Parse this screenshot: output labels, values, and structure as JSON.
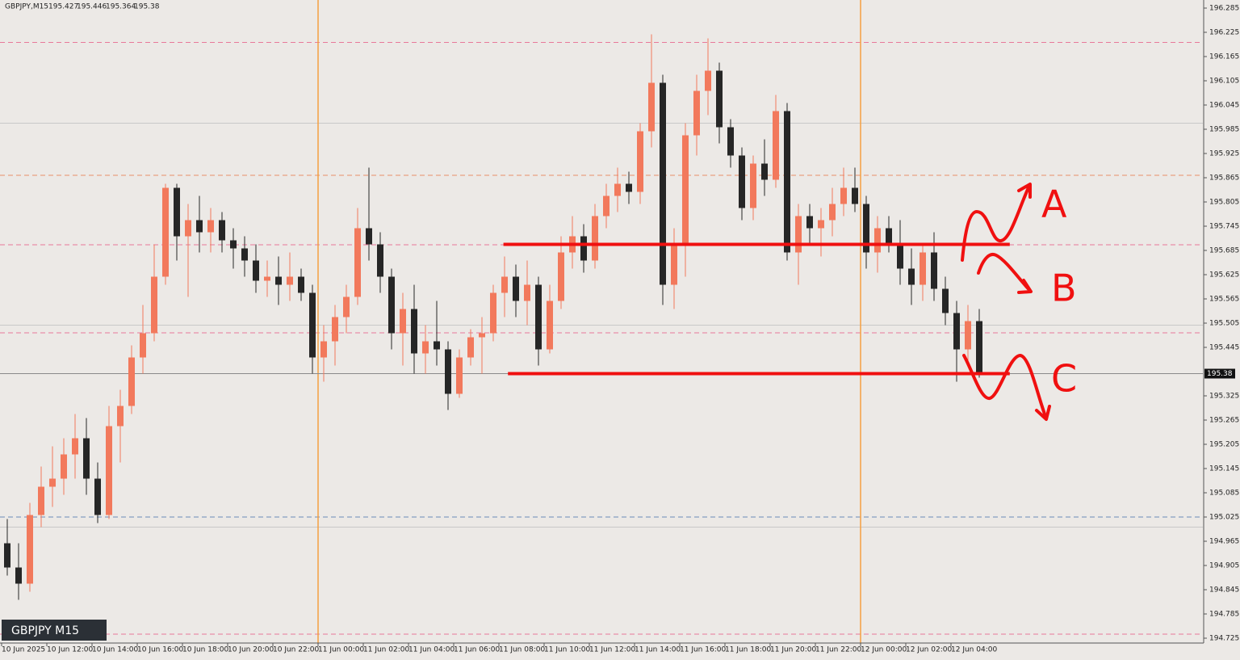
{
  "chart_data": {
    "type": "candlestick",
    "header": {
      "symbol": "GBPJPY,M15",
      "open": 195.427,
      "high": 195.446,
      "low": 195.364,
      "close": 195.38
    },
    "label": "GBPJPY M15",
    "ylim": [
      194.725,
      196.285
    ],
    "yticks": [
      196.285,
      196.225,
      196.165,
      196.105,
      196.045,
      195.985,
      195.925,
      195.865,
      195.805,
      195.745,
      195.685,
      195.625,
      195.565,
      195.505,
      195.445,
      195.325,
      195.265,
      195.205,
      195.145,
      195.085,
      195.025,
      194.965,
      194.905,
      194.845,
      194.785,
      194.725
    ],
    "xticks": [
      {
        "value": 0,
        "label": "10 Jun 2025"
      },
      {
        "value": 4,
        "label": "10 Jun 12:00"
      },
      {
        "value": 8,
        "label": "10 Jun 14:00"
      },
      {
        "value": 12,
        "label": "10 Jun 16:00"
      },
      {
        "value": 16,
        "label": "10 Jun 18:00"
      },
      {
        "value": 20,
        "label": "10 Jun 20:00"
      },
      {
        "value": 24,
        "label": "10 Jun 22:00"
      },
      {
        "value": 28,
        "label": "11 Jun 00:00"
      },
      {
        "value": 32,
        "label": "11 Jun 02:00"
      },
      {
        "value": 36,
        "label": "11 Jun 04:00"
      },
      {
        "value": 40,
        "label": "11 Jun 06:00"
      },
      {
        "value": 44,
        "label": "11 Jun 08:00"
      },
      {
        "value": 48,
        "label": "11 Jun 10:00"
      },
      {
        "value": 52,
        "label": "11 Jun 12:00"
      },
      {
        "value": 56,
        "label": "11 Jun 14:00"
      },
      {
        "value": 60,
        "label": "11 Jun 16:00"
      },
      {
        "value": 64,
        "label": "11 Jun 18:00"
      },
      {
        "value": 68,
        "label": "11 Jun 20:00"
      },
      {
        "value": 72,
        "label": "11 Jun 22:00"
      },
      {
        "value": 76,
        "label": "12 Jun 00:00"
      },
      {
        "value": 80,
        "label": "12 Jun 02:00"
      },
      {
        "value": 84,
        "label": "12 Jun 04:00"
      }
    ],
    "day_separators": [
      28,
      76
    ],
    "bull_color": "#f2795c",
    "bear_color": "#262626",
    "open": [
      194.96,
      194.9,
      194.86,
      195.03,
      195.1,
      195.12,
      195.18,
      195.22,
      195.12,
      195.03,
      195.25,
      195.3,
      195.42,
      195.48,
      195.62,
      195.84,
      195.72,
      195.76,
      195.73,
      195.76,
      195.71,
      195.69,
      195.66,
      195.61,
      195.62,
      195.6,
      195.62,
      195.58,
      195.42,
      195.46,
      195.52,
      195.57,
      195.74,
      195.7,
      195.62,
      195.48,
      195.54,
      195.43,
      195.46,
      195.44,
      195.33,
      195.42,
      195.47,
      195.48,
      195.58,
      195.62,
      195.56,
      195.6,
      195.44,
      195.56,
      195.68,
      195.72,
      195.66,
      195.77,
      195.82,
      195.85,
      195.83,
      195.98,
      196.1,
      195.6,
      195.7,
      195.97,
      196.08,
      196.13,
      195.99,
      195.92,
      195.79,
      195.9,
      195.86,
      196.03,
      195.68,
      195.77,
      195.74,
      195.76,
      195.8,
      195.84,
      195.8,
      195.68,
      195.74,
      195.7,
      195.64,
      195.6,
      195.68,
      195.59,
      195.53,
      195.44,
      195.51
    ],
    "high": [
      195.02,
      194.96,
      195.06,
      195.15,
      195.2,
      195.22,
      195.28,
      195.27,
      195.16,
      195.3,
      195.34,
      195.45,
      195.55,
      195.7,
      195.85,
      195.85,
      195.8,
      195.82,
      195.79,
      195.78,
      195.74,
      195.72,
      195.7,
      195.66,
      195.67,
      195.68,
      195.64,
      195.6,
      195.5,
      195.55,
      195.6,
      195.79,
      195.89,
      195.73,
      195.64,
      195.58,
      195.6,
      195.5,
      195.56,
      195.46,
      195.44,
      195.49,
      195.52,
      195.6,
      195.67,
      195.65,
      195.66,
      195.62,
      195.6,
      195.72,
      195.77,
      195.75,
      195.8,
      195.85,
      195.89,
      195.88,
      196.0,
      196.22,
      196.12,
      195.74,
      196.0,
      196.12,
      196.21,
      196.15,
      196.01,
      195.94,
      195.92,
      195.96,
      196.07,
      196.05,
      195.8,
      195.8,
      195.79,
      195.84,
      195.89,
      195.89,
      195.82,
      195.77,
      195.77,
      195.76,
      195.69,
      195.7,
      195.73,
      195.62,
      195.56,
      195.55,
      195.54
    ],
    "low": [
      194.88,
      194.82,
      194.84,
      195.0,
      195.05,
      195.08,
      195.12,
      195.08,
      195.01,
      195.02,
      195.16,
      195.28,
      195.38,
      195.46,
      195.6,
      195.66,
      195.57,
      195.68,
      195.68,
      195.68,
      195.64,
      195.62,
      195.58,
      195.57,
      195.55,
      195.56,
      195.56,
      195.38,
      195.36,
      195.4,
      195.48,
      195.55,
      195.66,
      195.58,
      195.44,
      195.4,
      195.38,
      195.38,
      195.4,
      195.29,
      195.32,
      195.4,
      195.38,
      195.46,
      195.52,
      195.52,
      195.5,
      195.4,
      195.43,
      195.54,
      195.64,
      195.63,
      195.64,
      195.74,
      195.78,
      195.8,
      195.8,
      195.94,
      195.55,
      195.54,
      195.62,
      195.92,
      196.02,
      195.95,
      195.89,
      195.76,
      195.76,
      195.82,
      195.84,
      195.66,
      195.6,
      195.7,
      195.67,
      195.72,
      195.77,
      195.78,
      195.64,
      195.63,
      195.68,
      195.6,
      195.55,
      195.56,
      195.56,
      195.5,
      195.36,
      195.4,
      195.37
    ],
    "close": [
      194.9,
      194.86,
      195.03,
      195.1,
      195.12,
      195.18,
      195.22,
      195.12,
      195.03,
      195.25,
      195.3,
      195.42,
      195.48,
      195.62,
      195.84,
      195.72,
      195.76,
      195.73,
      195.76,
      195.71,
      195.69,
      195.66,
      195.61,
      195.62,
      195.6,
      195.62,
      195.58,
      195.42,
      195.46,
      195.52,
      195.57,
      195.74,
      195.7,
      195.62,
      195.48,
      195.54,
      195.43,
      195.46,
      195.44,
      195.33,
      195.42,
      195.47,
      195.48,
      195.58,
      195.62,
      195.56,
      195.6,
      195.44,
      195.56,
      195.68,
      195.72,
      195.66,
      195.77,
      195.82,
      195.85,
      195.83,
      195.98,
      196.1,
      195.6,
      195.7,
      195.97,
      196.08,
      196.13,
      195.99,
      195.92,
      195.79,
      195.9,
      195.86,
      196.03,
      195.68,
      195.77,
      195.74,
      195.76,
      195.8,
      195.84,
      195.8,
      195.68,
      195.74,
      195.7,
      195.64,
      195.6,
      195.68,
      195.59,
      195.53,
      195.44,
      195.51,
      195.38
    ],
    "levels": [
      {
        "value": 196.2,
        "color": "#e8789a",
        "style": "dashed"
      },
      {
        "value": 196.0,
        "color": "#c8c8c8",
        "style": "solid"
      },
      {
        "value": 195.871,
        "color": "#e8906a",
        "style": "dashed"
      },
      {
        "value": 195.699,
        "color": "#e8789a",
        "style": "dashed"
      },
      {
        "value": 195.5,
        "color": "#c8c8c8",
        "style": "solid"
      },
      {
        "value": 195.481,
        "color": "#e8789a",
        "style": "dashed"
      },
      {
        "value": 195.025,
        "color": "#6a8ab8",
        "style": "dashed"
      },
      {
        "value": 195.0,
        "color": "#c8c8c8",
        "style": "solid"
      },
      {
        "value": 194.735,
        "color": "#e8789a",
        "style": "dashed"
      }
    ],
    "drawn_lines": [
      {
        "value": 195.7,
        "x_range": [
          44.4,
          89.2
        ],
        "color": "#f01010"
      },
      {
        "value": 195.38,
        "x_range": [
          44.8,
          89.2
        ],
        "color": "#f01010"
      }
    ],
    "annotations": [
      "A",
      "B",
      "C"
    ]
  }
}
